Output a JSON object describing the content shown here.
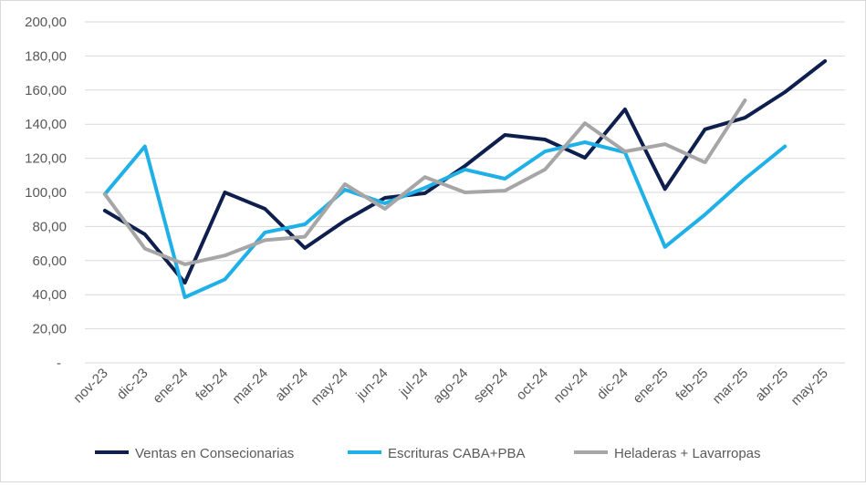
{
  "chart_data": {
    "type": "line",
    "title": "",
    "xlabel": "",
    "ylabel": "",
    "ylim": [
      0,
      200
    ],
    "y_ticks": [
      0,
      20,
      40,
      60,
      80,
      100,
      120,
      140,
      160,
      180,
      200
    ],
    "y_tick_labels": [
      "-",
      "20,00",
      "40,00",
      "60,00",
      "80,00",
      "100,00",
      "120,00",
      "140,00",
      "160,00",
      "180,00",
      "200,00"
    ],
    "grid": true,
    "legend_position": "bottom",
    "categories": [
      "nov-23",
      "dic-23",
      "ene-24",
      "feb-24",
      "mar-24",
      "abr-24",
      "may-24",
      "jun-24",
      "jul-24",
      "ago-24",
      "sep-24",
      "oct-24",
      "nov-24",
      "dic-24",
      "ene-25",
      "feb-25",
      "mar-25",
      "abr-25",
      "may-25"
    ],
    "series": [
      {
        "name": "Ventas en Consecionarias",
        "color": "#0e1f4d",
        "values": [
          89.3,
          75.4,
          47,
          100,
          90.4,
          67.4,
          83.4,
          96.8,
          99.5,
          115.5,
          133.7,
          131,
          120.3,
          148.7,
          102,
          137,
          143.8,
          158.8,
          177
        ]
      },
      {
        "name": "Escrituras CABA+PBA",
        "color": "#1eb0e6",
        "values": [
          99,
          127,
          38.5,
          49,
          76.5,
          81.3,
          101.6,
          93.6,
          102.7,
          113.4,
          108,
          124,
          129.4,
          123.5,
          68,
          87,
          108,
          127,
          null
        ]
      },
      {
        "name": "Heladeras + Lavarropas",
        "color": "#a6a6a6",
        "values": [
          99,
          67,
          57.8,
          63,
          72,
          74,
          104.8,
          90.4,
          109,
          100,
          101,
          113.4,
          140.6,
          124,
          128.3,
          117.6,
          154,
          null,
          null
        ]
      }
    ]
  }
}
